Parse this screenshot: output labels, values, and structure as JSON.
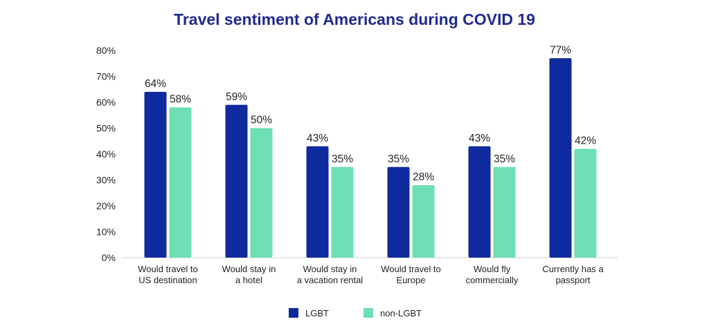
{
  "chart_data": {
    "type": "bar",
    "title": "Travel sentiment of Americans during COVID 19",
    "categories": [
      [
        "Would travel to",
        "US destination"
      ],
      [
        "Would stay in",
        "a hotel"
      ],
      [
        "Would stay in",
        "a vacation rental"
      ],
      [
        "Would travel to",
        "Europe"
      ],
      [
        "Would fly",
        "commercially"
      ],
      [
        "Currently has a",
        "passport"
      ]
    ],
    "series": [
      {
        "name": "LGBT",
        "color": "#0f2a9c",
        "values": [
          64,
          59,
          43,
          35,
          43,
          77
        ],
        "labels": [
          "64%",
          "59%",
          "43%",
          "35%",
          "43%",
          "77%"
        ]
      },
      {
        "name": "non-LGBT",
        "color": "#6ddfb3",
        "values": [
          58,
          50,
          35,
          28,
          35,
          42
        ],
        "labels": [
          "58%",
          "50%",
          "35%",
          "28%",
          "35%",
          "42%"
        ]
      }
    ],
    "ylim": [
      0,
      80
    ],
    "yticks": [
      "0%",
      "10%",
      "20%",
      "30%",
      "40%",
      "50%",
      "60%",
      "70%",
      "80%"
    ],
    "grid": false,
    "legend_position": "bottom-center"
  }
}
